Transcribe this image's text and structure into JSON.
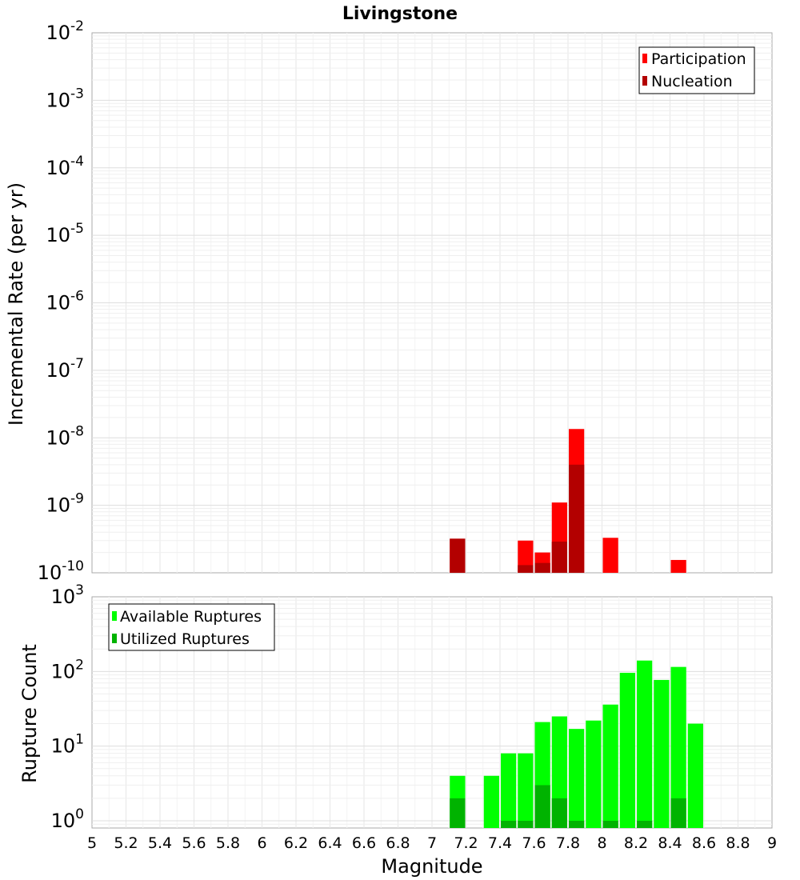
{
  "chart_data": [
    {
      "type": "bar",
      "title": "Livingstone",
      "ylabel": "Incremental Rate (per yr)",
      "xlabel": "",
      "yscale": "log",
      "ylim": [
        1e-10,
        0.01
      ],
      "xlim": [
        5,
        9
      ],
      "grid": true,
      "legend_position": "top-right",
      "y_ticks": [
        {
          "base": "10",
          "exp": "-10"
        },
        {
          "base": "10",
          "exp": "-9"
        },
        {
          "base": "10",
          "exp": "-8"
        },
        {
          "base": "10",
          "exp": "-7"
        },
        {
          "base": "10",
          "exp": "-6"
        },
        {
          "base": "10",
          "exp": "-5"
        },
        {
          "base": "10",
          "exp": "-4"
        },
        {
          "base": "10",
          "exp": "-3"
        },
        {
          "base": "10",
          "exp": "-2"
        }
      ],
      "x": [
        7.15,
        7.55,
        7.65,
        7.75,
        7.85,
        8.05,
        8.45
      ],
      "series": [
        {
          "name": "Participation",
          "color": "#ff0000",
          "values": [
            3.2e-10,
            3e-10,
            2e-10,
            1.1e-09,
            1.35e-08,
            3.3e-10,
            1.55e-10
          ]
        },
        {
          "name": "Nucleation",
          "color": "#b30000",
          "values": [
            3.2e-10,
            1.3e-10,
            1.4e-10,
            2.9e-10,
            4e-09,
            null,
            null
          ]
        }
      ]
    },
    {
      "type": "bar",
      "title": "",
      "ylabel": "Rupture Count",
      "xlabel": "Magnitude",
      "yscale": "log",
      "ylim": [
        0.8,
        1000
      ],
      "xlim": [
        5,
        9
      ],
      "grid": true,
      "legend_position": "top-left",
      "y_ticks": [
        {
          "base": "10",
          "exp": "0",
          "value": 1
        },
        {
          "base": "10",
          "exp": "1",
          "value": 10
        },
        {
          "base": "10",
          "exp": "2",
          "value": 100
        },
        {
          "base": "10",
          "exp": "3",
          "value": 1000
        }
      ],
      "x_tick_labels": [
        "5",
        "5.2",
        "5.4",
        "5.6",
        "5.8",
        "6",
        "6.2",
        "6.4",
        "6.6",
        "6.8",
        "7",
        "7.2",
        "7.4",
        "7.6",
        "7.8",
        "8",
        "8.2",
        "8.4",
        "8.6",
        "8.8",
        "9"
      ],
      "x": [
        7.15,
        7.35,
        7.45,
        7.55,
        7.65,
        7.75,
        7.85,
        7.95,
        8.05,
        8.15,
        8.25,
        8.35,
        8.45,
        8.55
      ],
      "series": [
        {
          "name": "Available Ruptures",
          "color": "#00ff00",
          "values": [
            4,
            4,
            8,
            8,
            21,
            25,
            17,
            22,
            36,
            96,
            140,
            77,
            115,
            20
          ]
        },
        {
          "name": "Utilized Ruptures",
          "color": "#00b300",
          "values": [
            2,
            null,
            1,
            1,
            3,
            2,
            1,
            null,
            1,
            null,
            1,
            null,
            2,
            null
          ]
        }
      ]
    }
  ]
}
